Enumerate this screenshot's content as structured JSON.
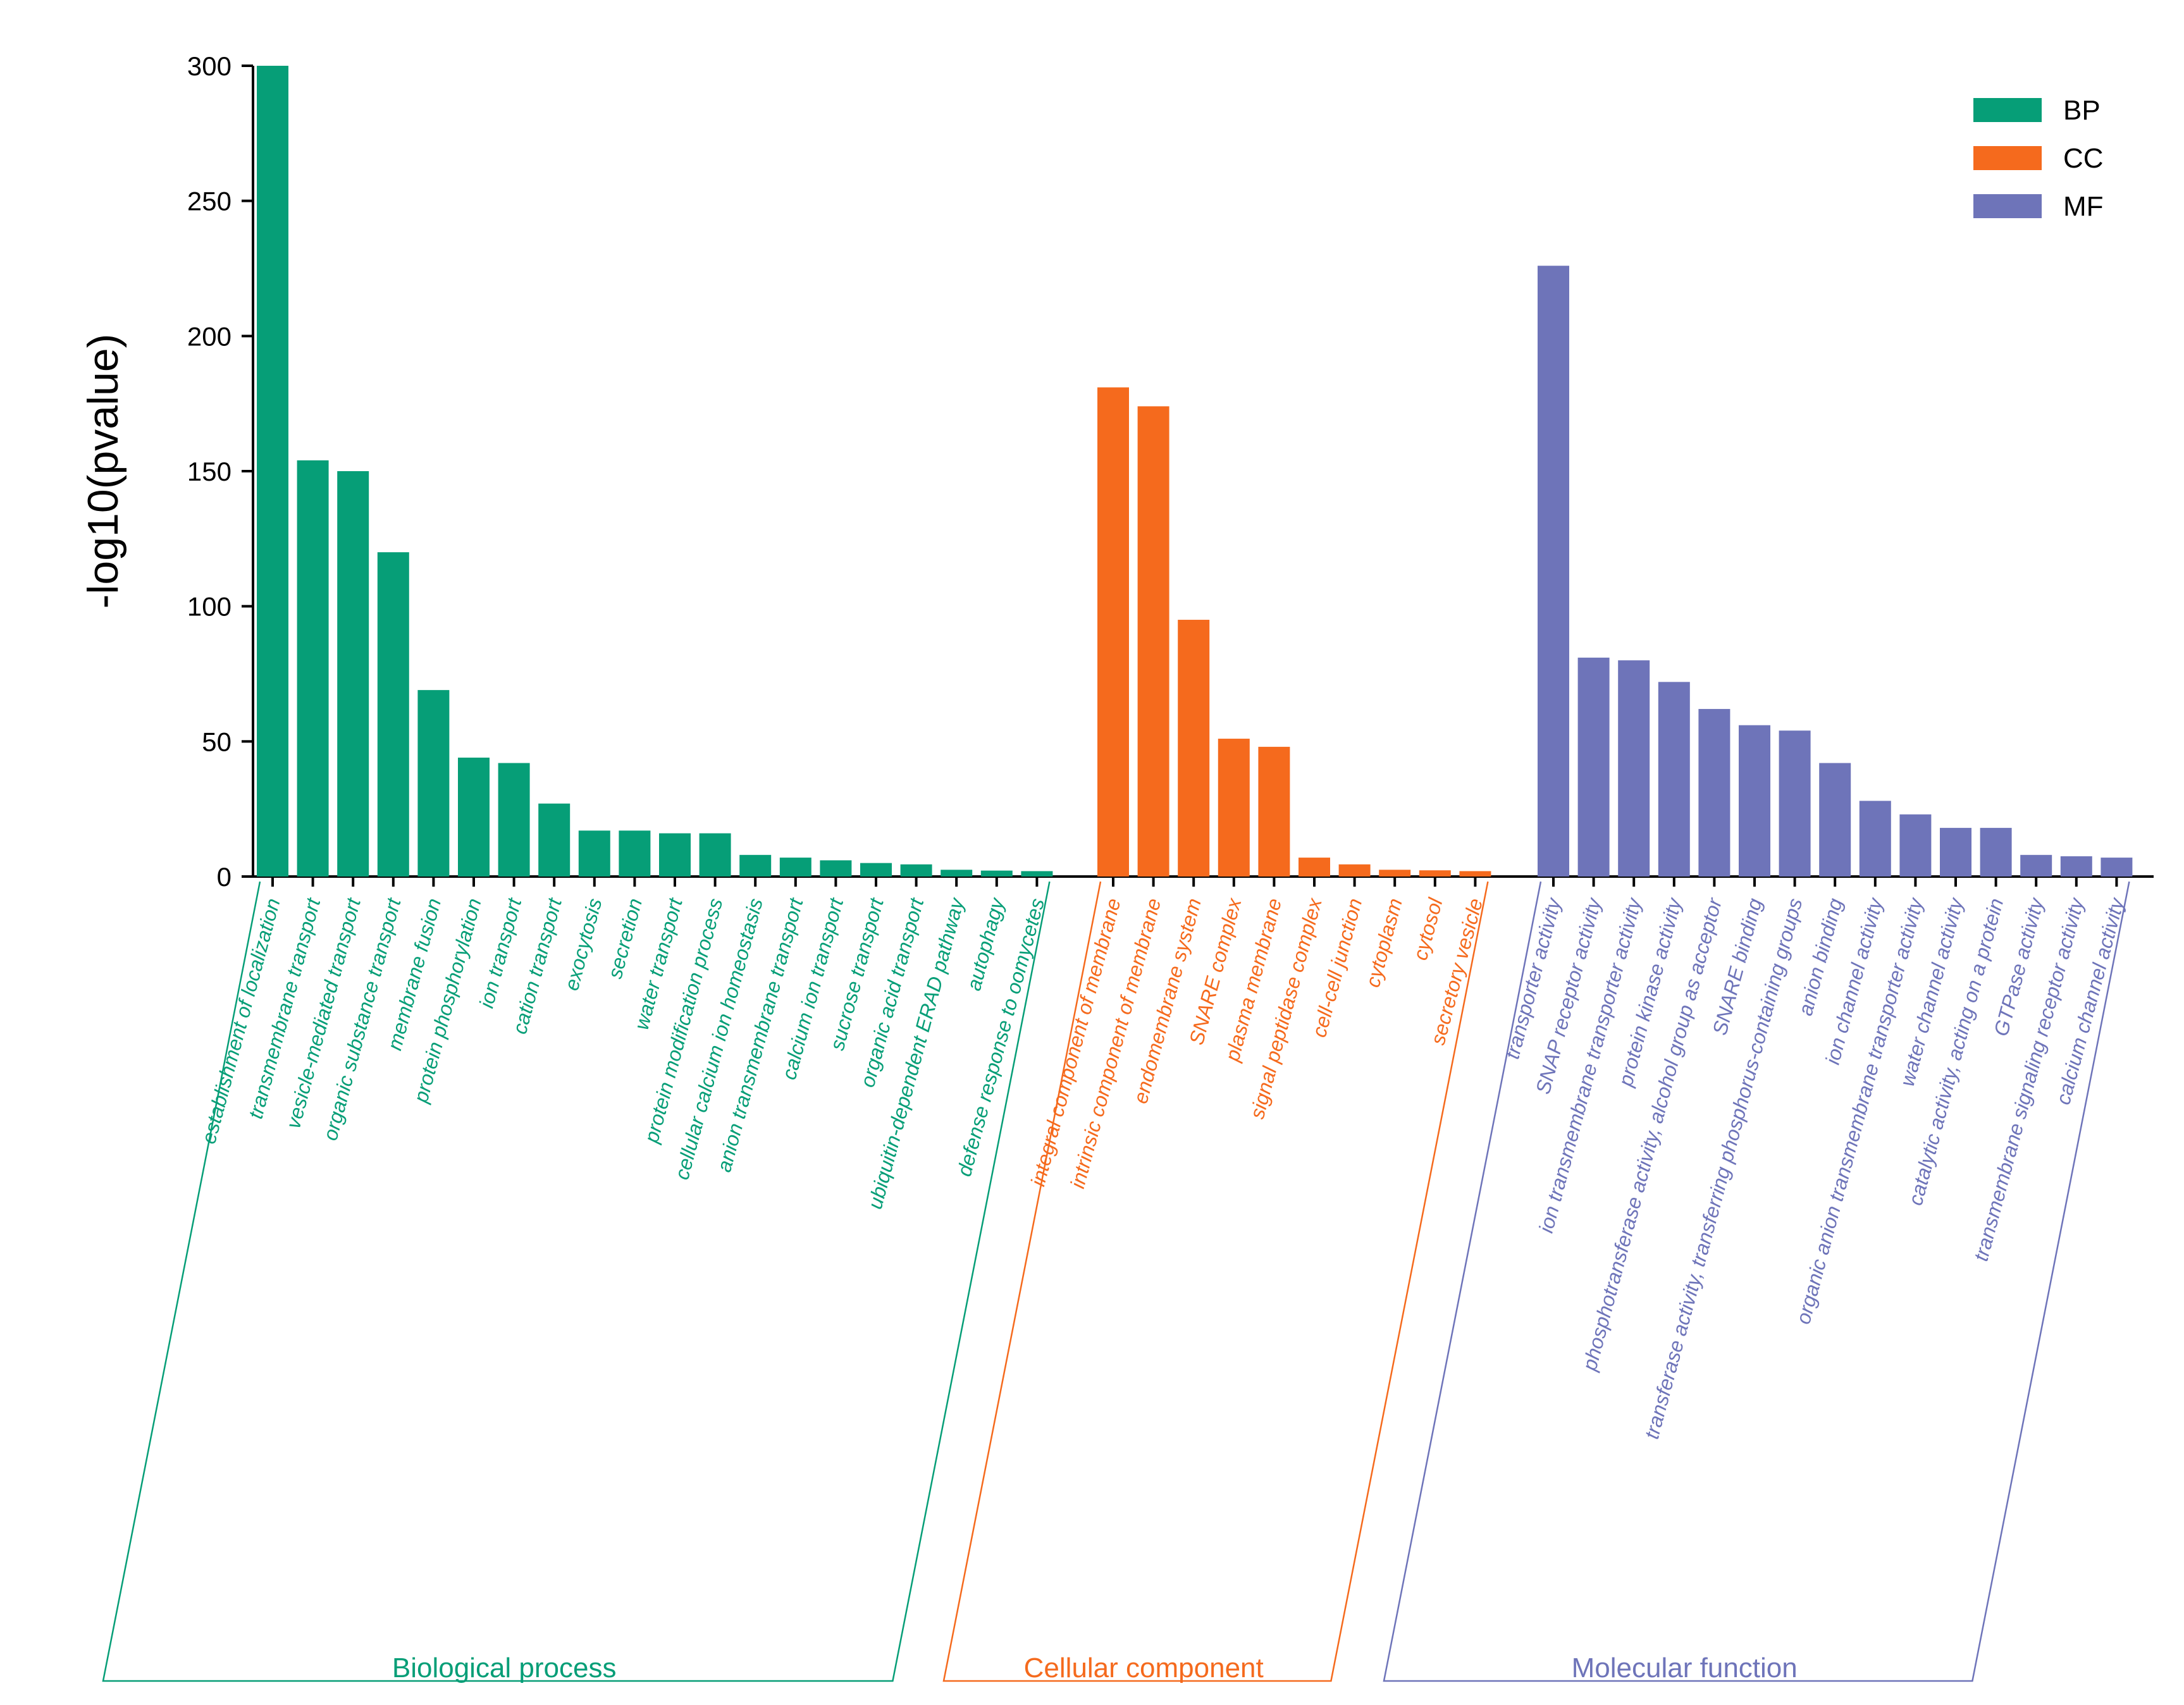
{
  "chart_data": {
    "type": "bar",
    "ylabel": "-log10(pvalue)",
    "xlabel": "",
    "ylim": [
      0,
      300
    ],
    "yticks": [
      0,
      50,
      100,
      150,
      200,
      250,
      300
    ],
    "grid": false,
    "legend_position": "top-right",
    "colors": {
      "BP": "#069e77",
      "CC": "#f56a1d",
      "MF": "#6e74b9"
    },
    "series": [
      {
        "name": "BP",
        "group_label": "Biological process",
        "categories": [
          "establishment of localization",
          "transmembrane transport",
          "vesicle-mediated transport",
          "organic substance transport",
          "membrane fusion",
          "protein phosphorylation",
          "ion transport",
          "cation transport",
          "exocytosis",
          "secretion",
          "water transport",
          "protein modification process",
          "cellular calcium ion homeostasis",
          "anion transmembrane transport",
          "calcium ion transport",
          "sucrose transport",
          "organic acid transport",
          "ubiquitin-dependent ERAD pathway",
          "autophagy",
          "defense response to oomycetes"
        ],
        "values": [
          300,
          154,
          150,
          120,
          69,
          44,
          42,
          27,
          17,
          17,
          16,
          16,
          8,
          7,
          6,
          5,
          4.5,
          2.5,
          2.2,
          2
        ]
      },
      {
        "name": "CC",
        "group_label": "Cellular component",
        "categories": [
          "integral component of membrane",
          "intrinsic component of membrane",
          "endomembrane system",
          "SNARE complex",
          "plasma membrane",
          "signal peptidase complex",
          "cell-cell junction",
          "cytoplasm",
          "cytosol",
          "secretory vesicle"
        ],
        "values": [
          181,
          174,
          95,
          51,
          48,
          7,
          4.5,
          2.5,
          2.3,
          2
        ]
      },
      {
        "name": "MF",
        "group_label": "Molecular function",
        "categories": [
          "transporter activity",
          "SNAP receptor activity",
          "ion transmembrane transporter activity",
          "protein kinase activity",
          "phosphotransferase activity, alcohol group as acceptor",
          "SNARE binding",
          "transferase activity, transferring phosphorus-containing groups",
          "anion binding",
          "ion channel activity",
          "organic anion transmembrane transporter activity",
          "water channel activity",
          "catalytic activity, acting on a protein",
          "GTPase activity",
          "transmembrane signaling receptor activity",
          "calcium channel activity"
        ],
        "values": [
          226,
          81,
          80,
          72,
          62,
          56,
          54,
          42,
          28,
          23,
          18,
          18,
          8,
          7.5,
          7
        ]
      }
    ]
  }
}
